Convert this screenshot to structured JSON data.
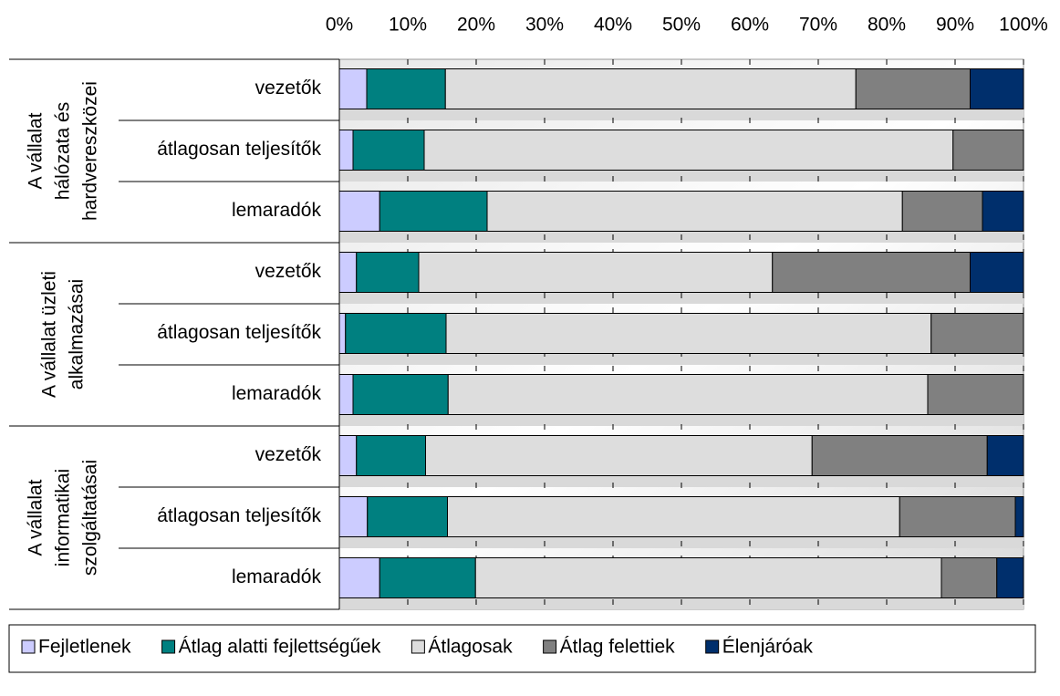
{
  "chart_data": {
    "type": "stacked-bar-horizontal",
    "groups": [
      {
        "lines": [
          "A vállalat",
          "hálózata és",
          "hardvereszközei"
        ],
        "categories": [
          "vezetők",
          "átlagosan teljesítők",
          "lemaradók"
        ]
      },
      {
        "lines": [
          "A vállalat üzleti",
          "alkalmazásai"
        ],
        "categories": [
          "vezetők",
          "átlagosan teljesítők",
          "lemaradók"
        ]
      },
      {
        "lines": [
          "A vállalat",
          "informatikai",
          "szolgáltatásai"
        ],
        "categories": [
          "vezetők",
          "átlagosan teljesítők",
          "lemaradók"
        ]
      }
    ],
    "series": [
      {
        "name": "Fejletlenek",
        "color": "#ccccff",
        "values": [
          4,
          2,
          5.9,
          2.5,
          0.9,
          2,
          2.5,
          4.1,
          5.9
        ]
      },
      {
        "name": "Átlag alatti fejlettségűek",
        "color": "#008080",
        "values": [
          11.5,
          10.4,
          15.7,
          9.1,
          14.7,
          13.9,
          10.1,
          11.7,
          14
        ]
      },
      {
        "name": "Átlagosak",
        "color": "#dddddd",
        "values": [
          60,
          77.3,
          60.7,
          51.7,
          70.9,
          70.1,
          56.5,
          66.1,
          68.1
        ]
      },
      {
        "name": "Átlag felettiek",
        "color": "#808080",
        "values": [
          16.7,
          10.3,
          11.7,
          28.9,
          13.5,
          14,
          25.6,
          16.9,
          8.1
        ]
      },
      {
        "name": "Élenjáróak",
        "color": "#002f6c",
        "values": [
          7.8,
          0,
          6,
          7.8,
          0,
          0,
          5.3,
          1.2,
          3.9
        ]
      }
    ],
    "xlim": [
      0,
      100
    ],
    "xticks": [
      {
        "value": 0,
        "label": "0%"
      },
      {
        "value": 10,
        "label": "10%"
      },
      {
        "value": 20,
        "label": "20%"
      },
      {
        "value": 30,
        "label": "30%"
      },
      {
        "value": 40,
        "label": "40%"
      },
      {
        "value": 50,
        "label": "50%"
      },
      {
        "value": 60,
        "label": "60%"
      },
      {
        "value": 70,
        "label": "70%"
      },
      {
        "value": 80,
        "label": "80%"
      },
      {
        "value": 90,
        "label": "90%"
      },
      {
        "value": 100,
        "label": "100%"
      }
    ],
    "grid": true
  }
}
